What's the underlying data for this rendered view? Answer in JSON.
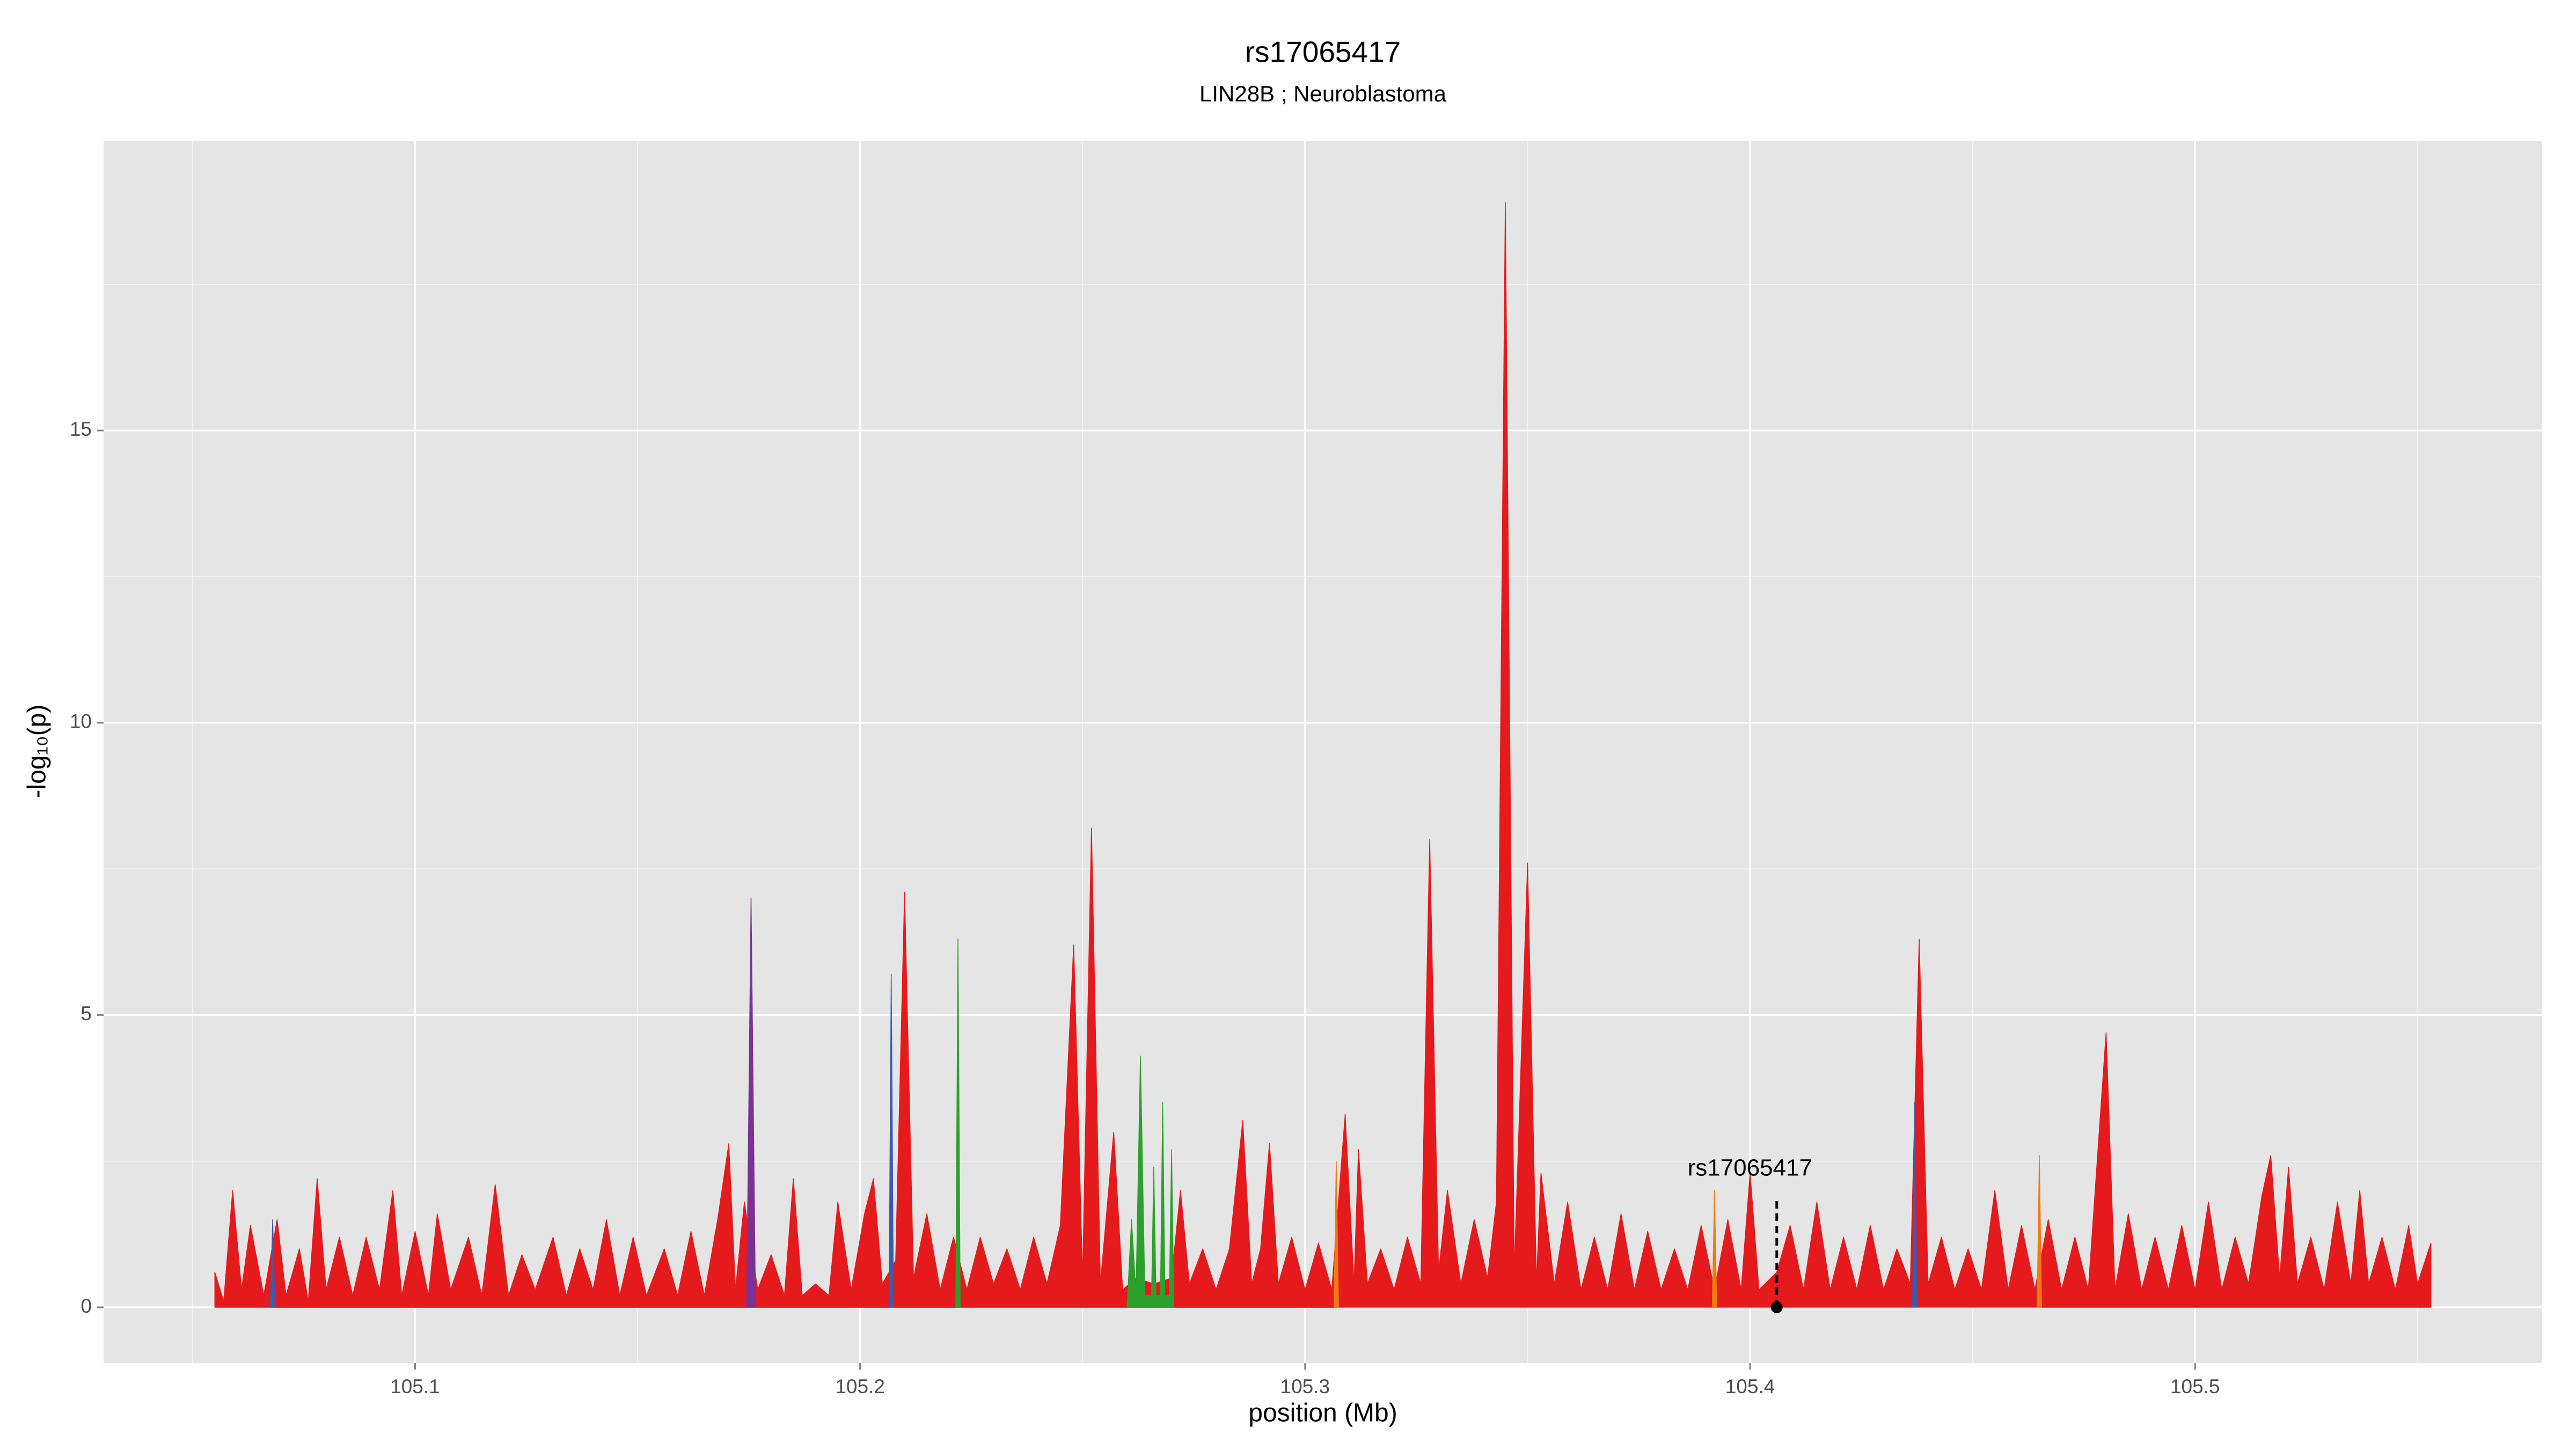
{
  "chart_data": {
    "type": "area",
    "title": "rs17065417",
    "subtitle": "LIN28B ; Neuroblastoma",
    "x_label": "position (Mb)",
    "y_label": "-log₁₀(p)",
    "xlim": [
      105.03,
      105.578
    ],
    "ylim": [
      -0.955,
      19.95
    ],
    "xticks": [
      105.1,
      105.2,
      105.3,
      105.4,
      105.5
    ],
    "yticks": [
      0,
      5,
      10,
      15
    ],
    "x_minor_grid": [
      105.05,
      105.15,
      105.25,
      105.35,
      105.45,
      105.55
    ],
    "y_minor_grid": [
      2.5,
      7.5,
      12.5,
      17.5
    ],
    "grid": true,
    "series": [
      {
        "color": "#e41a1c",
        "x": [
          105.055,
          105.057,
          105.059,
          105.061,
          105.063,
          105.066,
          105.069,
          105.071,
          105.074,
          105.076,
          105.078,
          105.08,
          105.083,
          105.086,
          105.089,
          105.092,
          105.095,
          105.097,
          105.1,
          105.103,
          105.105,
          105.108,
          105.112,
          105.115,
          105.118,
          105.121,
          105.124,
          105.127,
          105.131,
          105.134,
          105.137,
          105.14,
          105.143,
          105.146,
          105.149,
          105.152,
          105.156,
          105.159,
          105.162,
          105.165,
          105.168,
          105.1705,
          105.172,
          105.174,
          105.177,
          105.18,
          105.183,
          105.185,
          105.187,
          105.19,
          105.193,
          105.195,
          105.198,
          105.201,
          105.203,
          105.205,
          105.208,
          105.21,
          105.212,
          105.215,
          105.218,
          105.221,
          105.224,
          105.227,
          105.23,
          105.233,
          105.236,
          105.239,
          105.242,
          105.245,
          105.248,
          105.25,
          105.252,
          105.254,
          105.257,
          105.259,
          105.262,
          105.266,
          105.27,
          105.272,
          105.274,
          105.277,
          105.28,
          105.283,
          105.286,
          105.288,
          105.29,
          105.292,
          105.294,
          105.297,
          105.3,
          105.303,
          105.306,
          105.309,
          105.311,
          105.312,
          105.314,
          105.317,
          105.32,
          105.323,
          105.326,
          105.328,
          105.33,
          105.332,
          105.335,
          105.338,
          105.341,
          105.343,
          105.345,
          105.347,
          105.35,
          105.352,
          105.353,
          105.356,
          105.359,
          105.362,
          105.365,
          105.368,
          105.371,
          105.374,
          105.377,
          105.38,
          105.383,
          105.386,
          105.389,
          105.392,
          105.395,
          105.398,
          105.4,
          105.402,
          105.406,
          105.409,
          105.412,
          105.415,
          105.418,
          105.421,
          105.424,
          105.427,
          105.43,
          105.433,
          105.436,
          105.438,
          105.44,
          105.443,
          105.446,
          105.449,
          105.452,
          105.455,
          105.458,
          105.461,
          105.464,
          105.467,
          105.47,
          105.473,
          105.476,
          105.48,
          105.482,
          105.485,
          105.488,
          105.491,
          105.494,
          105.497,
          105.5,
          105.503,
          105.506,
          105.509,
          105.512,
          105.515,
          105.517,
          105.519,
          105.521,
          105.523,
          105.526,
          105.529,
          105.532,
          105.535,
          105.537,
          105.539,
          105.542,
          105.545,
          105.548,
          105.55,
          105.553
        ],
        "values": [
          0.6,
          0.1,
          2.0,
          0.3,
          1.4,
          0.2,
          1.5,
          0.2,
          1.0,
          0.1,
          2.2,
          0.3,
          1.2,
          0.2,
          1.2,
          0.3,
          2.0,
          0.2,
          1.3,
          0.2,
          1.6,
          0.3,
          1.2,
          0.2,
          2.1,
          0.2,
          0.9,
          0.3,
          1.2,
          0.2,
          1.0,
          0.3,
          1.5,
          0.2,
          1.2,
          0.2,
          1.0,
          0.2,
          1.3,
          0.2,
          1.5,
          2.8,
          0.3,
          1.8,
          0.3,
          0.9,
          0.2,
          2.2,
          0.2,
          0.4,
          0.2,
          1.8,
          0.3,
          1.6,
          2.2,
          0.4,
          0.8,
          7.1,
          0.5,
          1.6,
          0.3,
          1.2,
          0.3,
          1.2,
          0.4,
          1.0,
          0.3,
          1.2,
          0.4,
          1.4,
          6.2,
          0.5,
          8.2,
          0.4,
          3.0,
          0.3,
          0.5,
          0.4,
          0.5,
          2.0,
          0.4,
          1.0,
          0.3,
          1.0,
          3.2,
          0.4,
          1.0,
          2.8,
          0.4,
          1.2,
          0.3,
          1.1,
          0.3,
          3.3,
          0.4,
          2.7,
          0.4,
          1.0,
          0.3,
          1.2,
          0.4,
          8.0,
          0.6,
          2.0,
          0.4,
          1.5,
          0.5,
          1.8,
          18.9,
          0.6,
          7.6,
          0.4,
          2.3,
          0.4,
          1.8,
          0.3,
          1.2,
          0.3,
          1.6,
          0.3,
          1.3,
          0.3,
          1.0,
          0.3,
          1.4,
          0.3,
          1.5,
          0.3,
          2.3,
          0.3,
          0.6,
          1.4,
          0.3,
          1.8,
          0.3,
          1.2,
          0.3,
          1.4,
          0.3,
          1.0,
          0.4,
          6.3,
          0.4,
          1.2,
          0.3,
          1.0,
          0.3,
          2.0,
          0.3,
          1.4,
          0.3,
          1.5,
          0.3,
          1.2,
          0.3,
          4.7,
          0.3,
          1.6,
          0.3,
          1.2,
          0.3,
          1.4,
          0.3,
          1.8,
          0.3,
          1.2,
          0.4,
          1.9,
          2.6,
          0.5,
          2.4,
          0.4,
          1.2,
          0.3,
          1.8,
          0.4,
          2.0,
          0.4,
          1.2,
          0.3,
          1.4,
          0.4,
          1.1
        ]
      },
      {
        "color": "#7b3294",
        "x": [
          105.1745,
          105.1755,
          105.1765
        ],
        "values": [
          0,
          7.0,
          0
        ]
      },
      {
        "color": "#3b5bab",
        "x": [
          105.0675,
          105.068,
          105.0685,
          105.2065,
          105.207,
          105.2075,
          105.4365,
          105.437,
          105.4375
        ],
        "values": [
          0,
          1.5,
          0,
          0,
          5.7,
          0,
          0,
          3.5,
          0
        ]
      },
      {
        "color": "#2ca02c",
        "x": [
          105.2215,
          105.222,
          105.2225,
          105.26,
          105.261,
          105.262,
          105.263,
          105.264,
          105.2655,
          105.266,
          105.2665,
          105.2675,
          105.268,
          105.2685,
          105.2695,
          105.27,
          105.2705
        ],
        "values": [
          0,
          6.3,
          0,
          0,
          1.5,
          0.2,
          4.3,
          0.2,
          0.2,
          2.4,
          0.2,
          0.2,
          3.5,
          0.2,
          0.2,
          2.7,
          0
        ]
      },
      {
        "color": "#f07b10",
        "x": [
          105.3065,
          105.307,
          105.3075,
          105.3915,
          105.392,
          105.3925,
          105.4645,
          105.465,
          105.4655
        ],
        "values": [
          0,
          2.5,
          0,
          0,
          2.0,
          0,
          0,
          2.6,
          0
        ]
      }
    ],
    "annotation": {
      "text": "rs17065417",
      "x": 105.406,
      "y": 0,
      "y_end": 1.9
    }
  }
}
